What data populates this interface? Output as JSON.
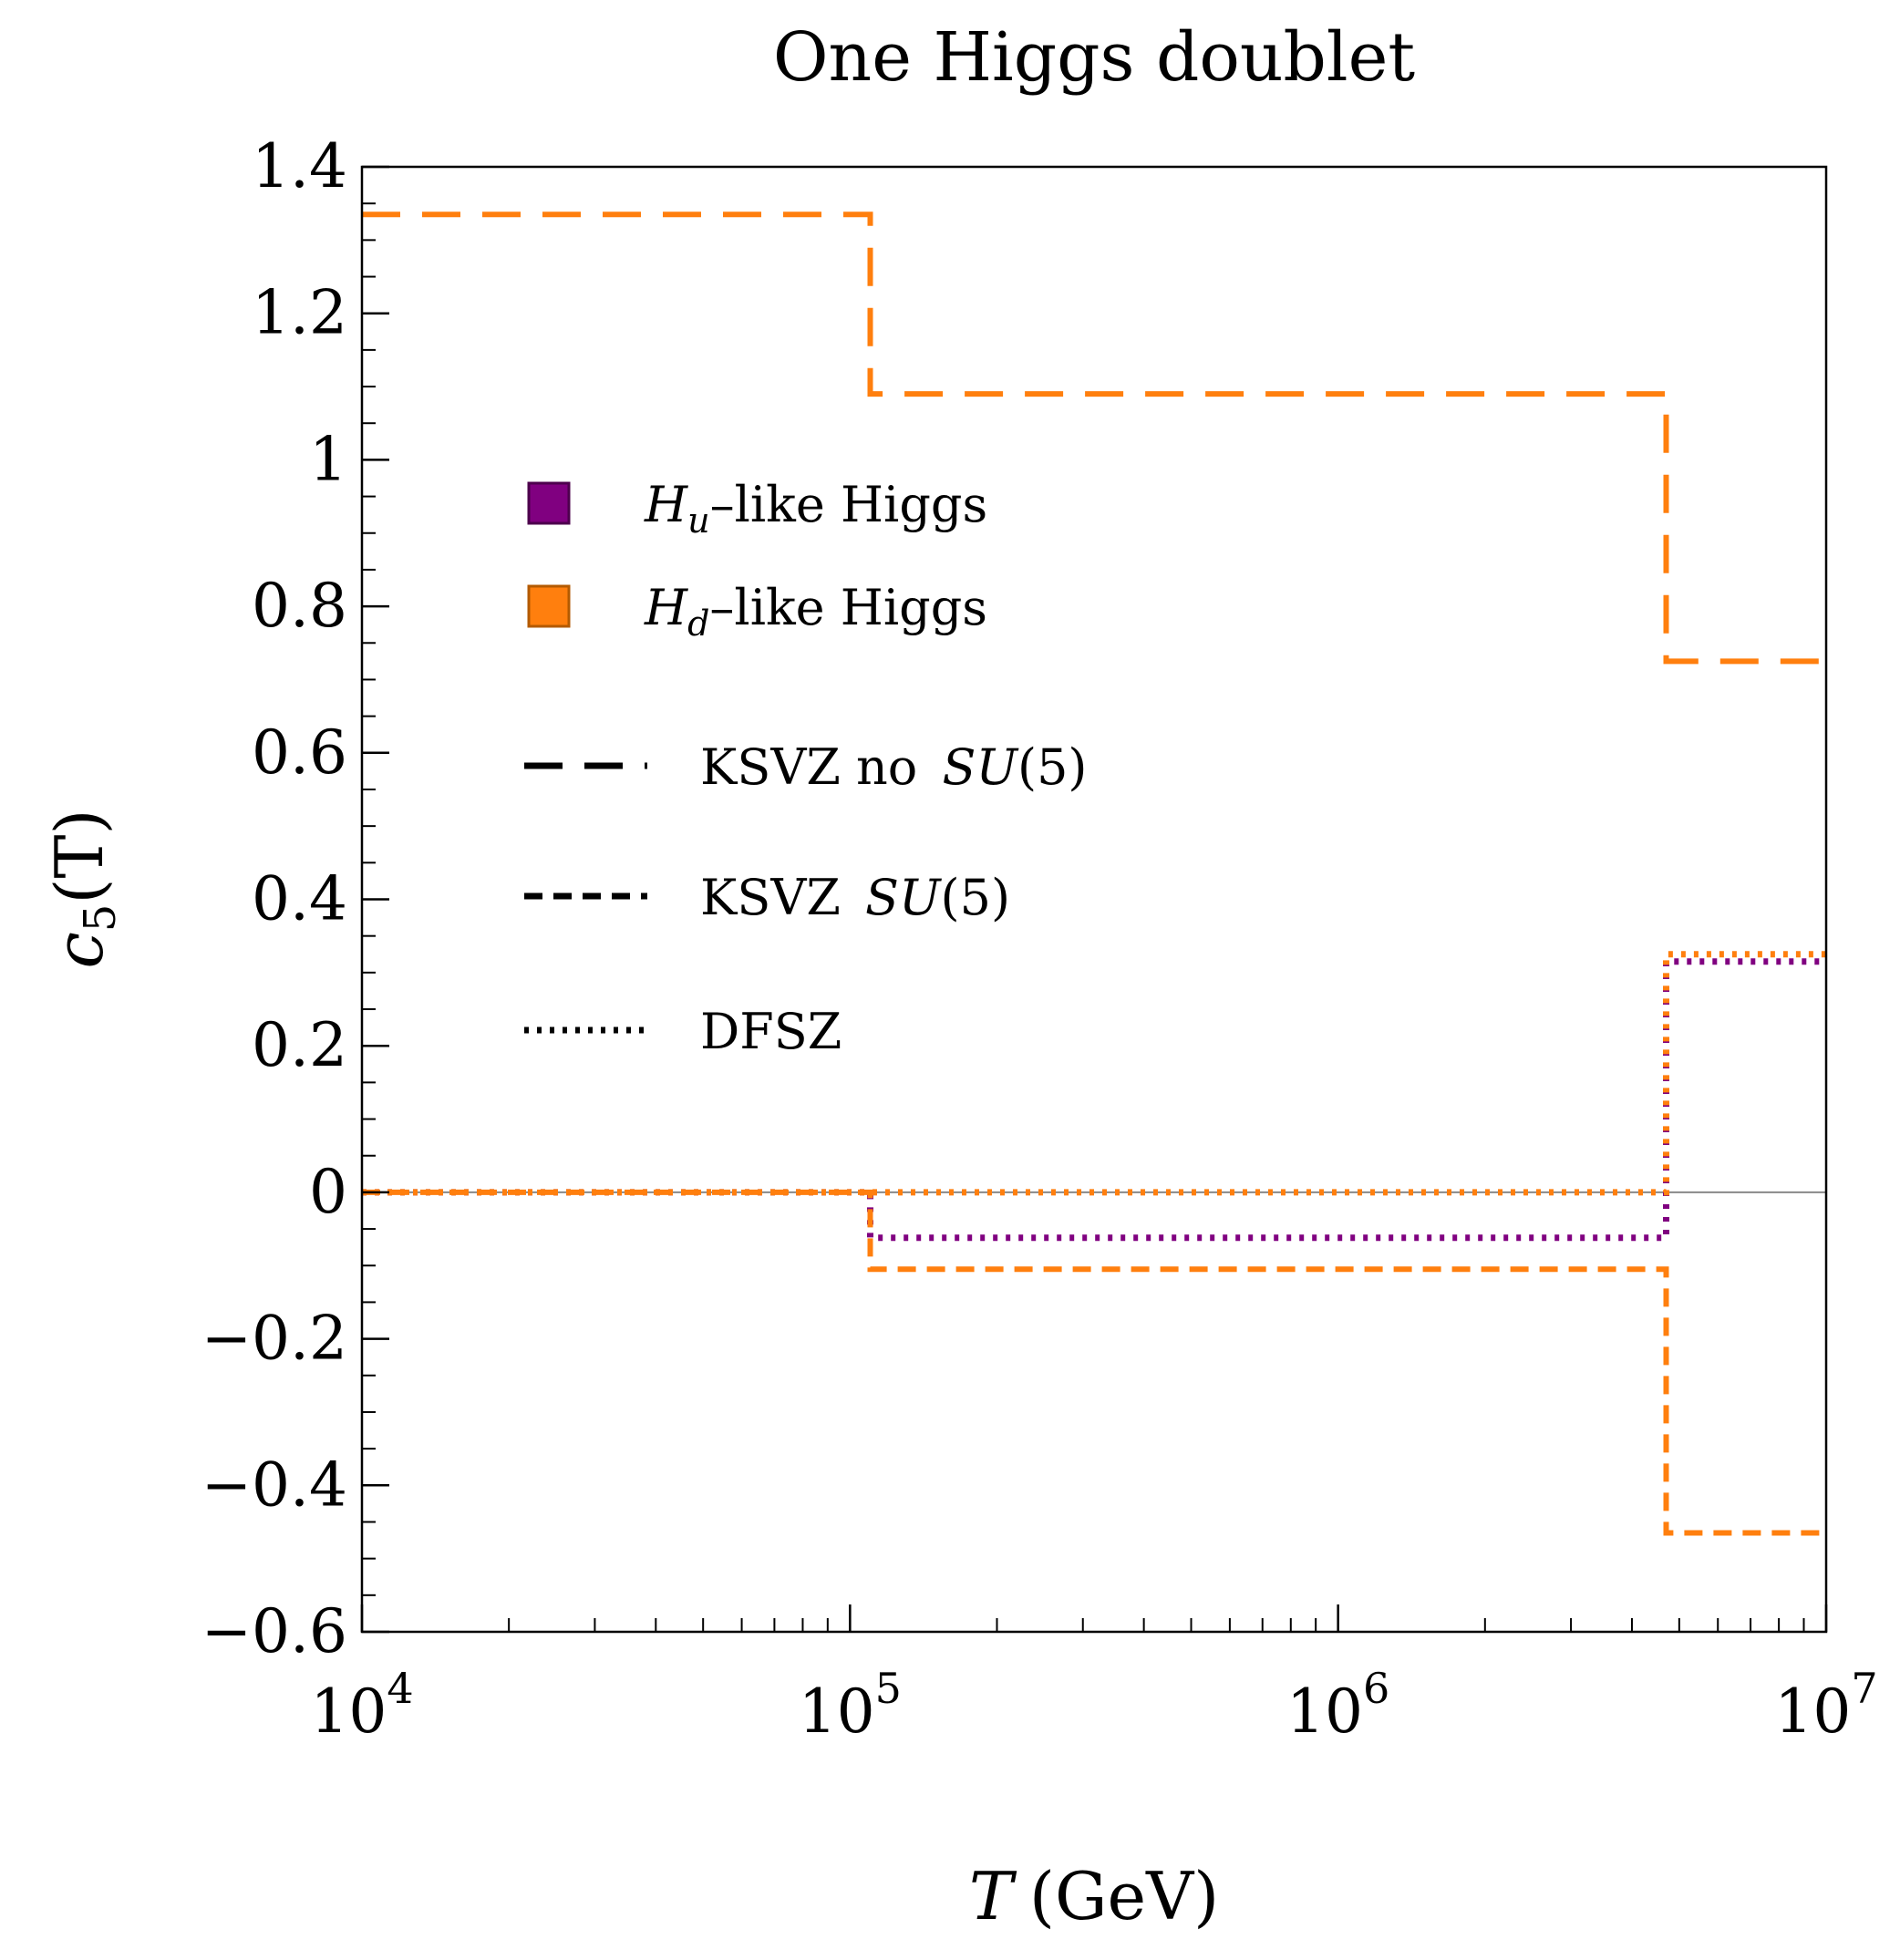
{
  "chart_data": {
    "type": "line",
    "title": "One Higgs doublet",
    "xlabel": {
      "var": "T",
      "unit": "(GeV)"
    },
    "ylabel": {
      "main": "c",
      "sub": "5",
      "arg": "(T)"
    },
    "xscale": "log",
    "xlim": [
      10000,
      10000000
    ],
    "ylim": [
      -0.6,
      1.4
    ],
    "x_ticks": [
      {
        "value": 10000,
        "base": "10",
        "exp": "4"
      },
      {
        "value": 100000,
        "base": "10",
        "exp": "5"
      },
      {
        "value": 1000000,
        "base": "10",
        "exp": "6"
      },
      {
        "value": 10000000,
        "base": "10",
        "exp": "7"
      }
    ],
    "y_ticks": [
      {
        "value": 1.4,
        "label": "1.4"
      },
      {
        "value": 1.2,
        "label": "1.2"
      },
      {
        "value": 1.0,
        "label": "1"
      },
      {
        "value": 0.8,
        "label": "0.8"
      },
      {
        "value": 0.6,
        "label": "0.6"
      },
      {
        "value": 0.4,
        "label": "0.4"
      },
      {
        "value": 0.2,
        "label": "0.2"
      },
      {
        "value": 0.0,
        "label": "0"
      },
      {
        "value": -0.2,
        "label": "−0.2"
      },
      {
        "value": -0.4,
        "label": "−0.4"
      },
      {
        "value": -0.6,
        "label": "−0.6"
      }
    ],
    "reference_line_y": 0,
    "grid": false,
    "legend": {
      "placement": "upper-left",
      "colors": [
        {
          "label_var": "H",
          "label_sub": "u",
          "label_rest": "–like Higgs",
          "color": "#800080"
        },
        {
          "label_var": "H",
          "label_sub": "d",
          "label_rest": "–like Higgs",
          "color": "#ff7f0e"
        }
      ],
      "styles": [
        {
          "label_plain": "KSVZ no ",
          "label_math": "SU",
          "label_tail": "(5)",
          "dash": "long"
        },
        {
          "label_plain": "KSVZ ",
          "label_math": "SU",
          "label_tail": "(5)",
          "dash": "short"
        },
        {
          "label_plain": "DFSZ",
          "label_math": "",
          "label_tail": "",
          "dash": "dotted"
        }
      ]
    },
    "series": [
      {
        "dash": "dotted",
        "color": "#800080",
        "points": [
          [
            10000,
            0
          ],
          [
            110000,
            0
          ],
          [
            110000,
            -0.062
          ],
          [
            4700000,
            -0.062
          ],
          [
            4700000,
            0.315
          ],
          [
            10000000,
            0.315
          ]
        ]
      },
      {
        "dash": "dotted",
        "color": "#ff7f0e",
        "points": [
          [
            10000,
            0
          ],
          [
            4700000,
            0
          ],
          [
            4700000,
            0.325
          ],
          [
            10000000,
            0.325
          ]
        ]
      },
      {
        "dash": "short",
        "color": "#ff7f0e",
        "points": [
          [
            10000,
            0
          ],
          [
            110000,
            0
          ],
          [
            110000,
            -0.105
          ],
          [
            4700000,
            -0.105
          ],
          [
            4700000,
            -0.465
          ],
          [
            10000000,
            -0.465
          ]
        ]
      },
      {
        "dash": "long",
        "color": "#ff7f0e",
        "points": [
          [
            10000,
            1.335
          ],
          [
            110000,
            1.335
          ],
          [
            110000,
            1.09
          ],
          [
            4700000,
            1.09
          ],
          [
            4700000,
            0.725
          ],
          [
            10000000,
            0.725
          ]
        ]
      }
    ]
  }
}
